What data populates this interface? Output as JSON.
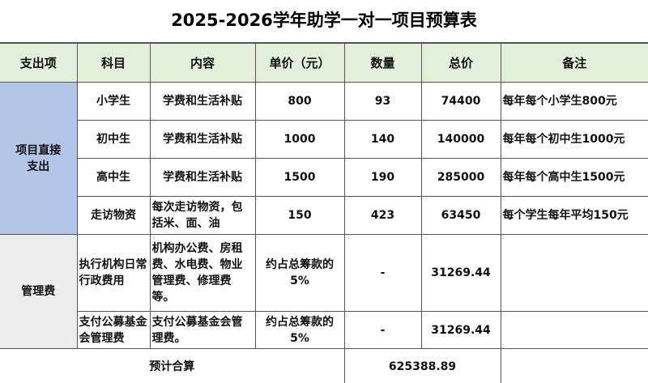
{
  "title": "2025-2026学年助学一对一项目预算表",
  "colors": {
    "header_bg": "#e2efda",
    "direct_bg": "#b4c6e7",
    "mgmt_bg": "#ededed"
  },
  "headers": [
    "支出项",
    "科目",
    "内容",
    "单价（元）",
    "数量",
    "总价",
    "备注"
  ],
  "direct": {
    "category": "项目直接支出",
    "rows": [
      {
        "subject": "小学生",
        "content": "学费和生活补贴",
        "price": "800",
        "qty": "93",
        "total": "74400",
        "note": "每年每个小学生800元"
      },
      {
        "subject": "初中生",
        "content": "学费和生活补贴",
        "price": "1000",
        "qty": "140",
        "total": "140000",
        "note": "每年每个初中生1000元"
      },
      {
        "subject": "高中生",
        "content": "学费和生活补贴",
        "price": "1500",
        "qty": "190",
        "total": "285000",
        "note": "每年每个高中生1500元"
      },
      {
        "subject": "走访物资",
        "content": "每次走访物资，包括米、面、油",
        "price": "150",
        "qty": "423",
        "total": "63450",
        "note": "每个学生每年平均150元"
      }
    ]
  },
  "management": {
    "category": "管理费",
    "rows": [
      {
        "subject": "执行机构日常行政费用",
        "content": "机构办公费、房租费、水电费、物业管理费、修理费等。",
        "price": "约占总筹款的5%",
        "qty": "-",
        "total": "31269.44",
        "note": ""
      },
      {
        "subject": "支付公募基金会管理费",
        "content": "支付公募基金会管理费。",
        "price": "约占总筹款的5%",
        "qty": "-",
        "total": "31269.44",
        "note": ""
      }
    ]
  },
  "footer": {
    "label": "预计合算",
    "total": "625388.89"
  }
}
